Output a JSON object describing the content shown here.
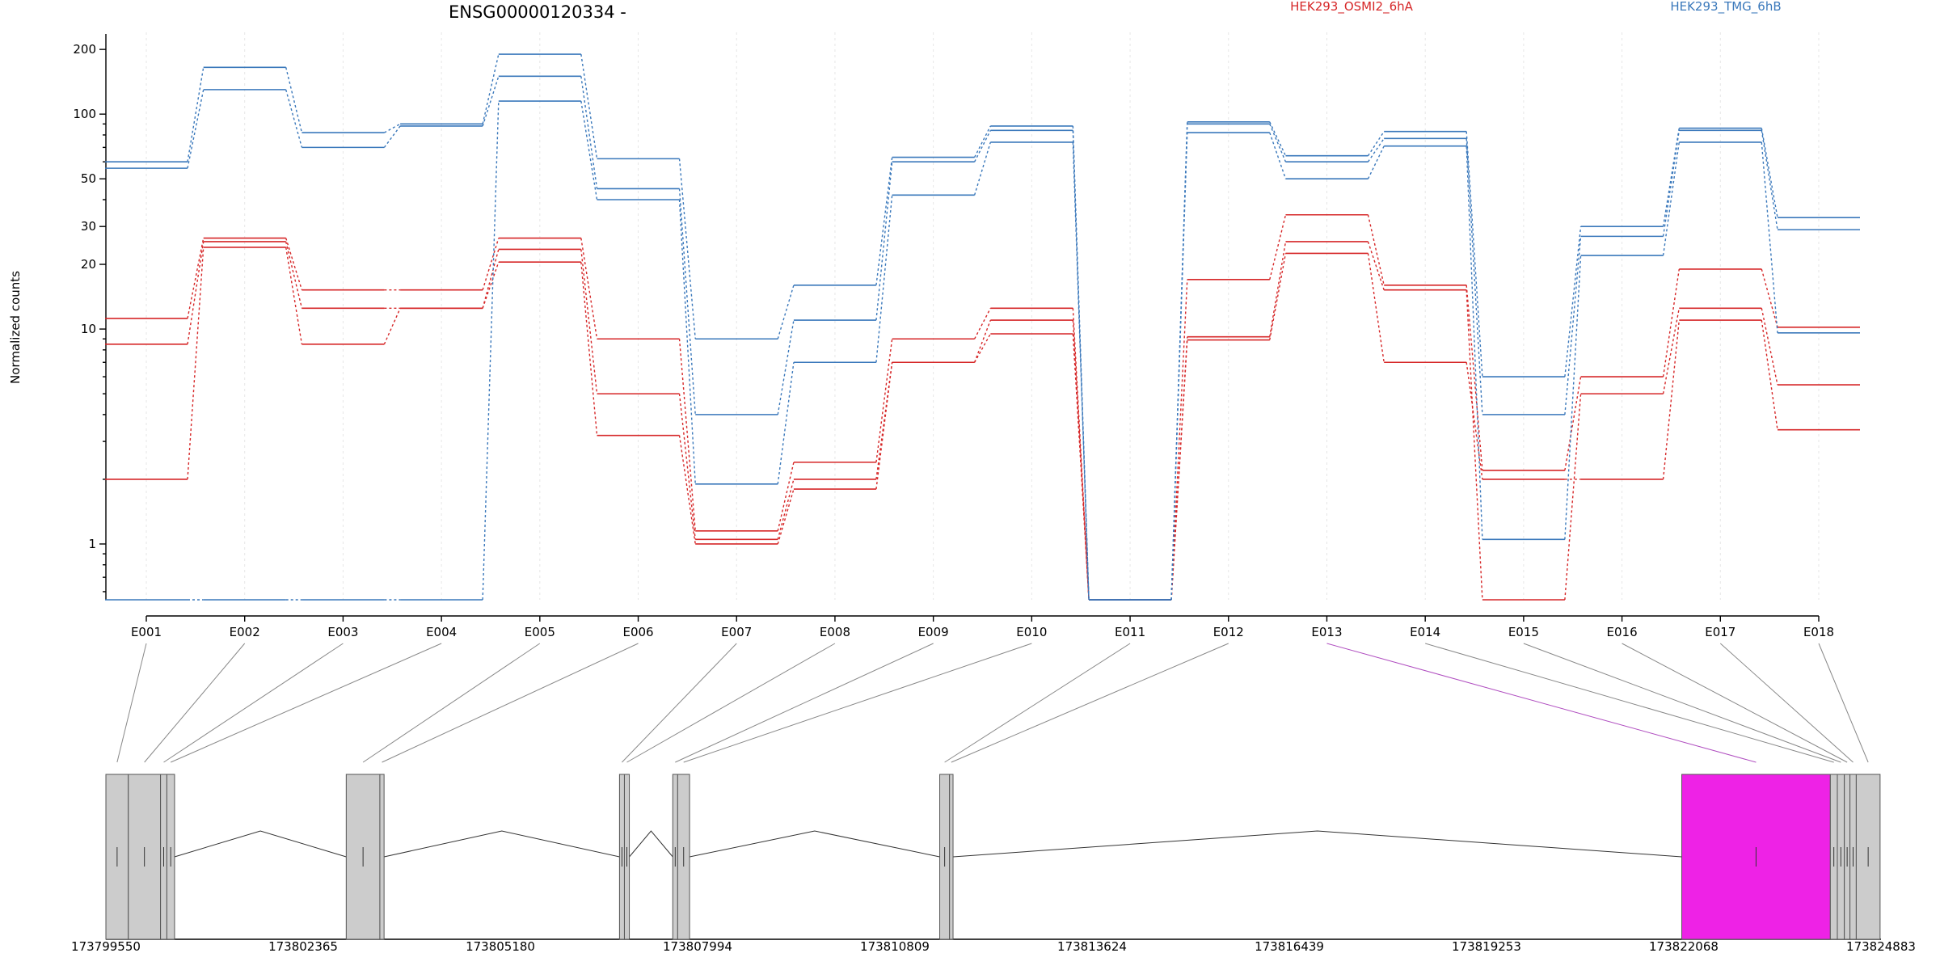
{
  "chart_data": {
    "type": "line",
    "title": "ENSG00000120334 -",
    "xlabel": "",
    "ylabel": "Normalized counts",
    "y_scale": "log",
    "ylim": [
      0.55,
      230
    ],
    "y_ticks": [
      1,
      10,
      20,
      30,
      50,
      100,
      200
    ],
    "grid": "vertical dotted lines at exon centers",
    "categories": [
      "E001",
      "E002",
      "E003",
      "E004",
      "E005",
      "E006",
      "E007",
      "E008",
      "E009",
      "E010",
      "E011",
      "E012",
      "E013",
      "E014",
      "E015",
      "E016",
      "E017",
      "E018"
    ],
    "zero_floor_value": 0.55,
    "series": [
      {
        "name": "HEK293_OSMI2_6hA",
        "color": "#d62728",
        "values": [
          11.2,
          26.5,
          15.2,
          15.2,
          26.5,
          9.0,
          1.15,
          2.4,
          9.0,
          12.5,
          0.55,
          17.0,
          34.0,
          16.0,
          2.2,
          6.0,
          19.0,
          10.2
        ]
      },
      {
        "name": "HEK293_OSMI2_6hA",
        "color": "#d62728",
        "values": [
          8.5,
          25.5,
          12.5,
          12.5,
          23.5,
          5.0,
          1.05,
          2.0,
          7.0,
          11.0,
          0.55,
          9.2,
          25.5,
          15.2,
          0.55,
          5.0,
          12.5,
          5.5
        ]
      },
      {
        "name": "HEK293_OSMI2_6hA",
        "color": "#d62728",
        "values": [
          2.0,
          24.0,
          8.5,
          12.5,
          20.5,
          3.2,
          1.0,
          1.8,
          7.0,
          9.5,
          0.55,
          8.9,
          22.5,
          7.0,
          2.0,
          2.0,
          11.0,
          3.4
        ]
      },
      {
        "name": "HEK293_TMG_6hB",
        "color": "#3a78bb",
        "values": [
          60,
          165,
          82,
          90,
          190,
          62,
          9.0,
          16.0,
          63,
          88,
          0.55,
          92,
          64,
          83,
          6.0,
          30,
          86,
          33
        ]
      },
      {
        "name": "HEK293_TMG_6hB",
        "color": "#3a78bb",
        "values": [
          56,
          130,
          70,
          88,
          150,
          45,
          4.0,
          11.0,
          60,
          84,
          0.55,
          90,
          60,
          77,
          4.0,
          27,
          84,
          29
        ]
      },
      {
        "name": "HEK293_TMG_6hB",
        "color": "#3a78bb",
        "values": [
          0.55,
          0.55,
          0.55,
          0.55,
          115,
          40,
          1.9,
          7.0,
          42,
          74,
          0.55,
          82,
          50,
          71,
          1.05,
          22,
          74,
          9.6
        ]
      }
    ],
    "legend": [
      {
        "name": "HEK293_OSMI2_6hA",
        "color": "#d62728"
      },
      {
        "name": "HEK293_TMG_6hB",
        "color": "#3a78bb"
      }
    ],
    "gene_model": {
      "coordinate_ticks": [
        173799550,
        173802365,
        173805180,
        173807994,
        173810809,
        173813624,
        173816439,
        173819253,
        173822068,
        173824883
      ],
      "highlight_exon": "E013",
      "highlight_color": "#ee22e6",
      "connector_color": "#888888",
      "highlight_connector_color": "#b04ec0",
      "exons": [
        {
          "id": "E001",
          "start": 173799550,
          "end": 173799870
        },
        {
          "id": "E002",
          "start": 173799870,
          "end": 173800330
        },
        {
          "id": "E003",
          "start": 173800330,
          "end": 173800420
        },
        {
          "id": "E004",
          "start": 173800420,
          "end": 173800530
        },
        {
          "id": "E005",
          "start": 173802980,
          "end": 173803460
        },
        {
          "id": "E006",
          "start": 173803460,
          "end": 173803520
        },
        {
          "id": "E007",
          "start": 173806880,
          "end": 173806950
        },
        {
          "id": "E008",
          "start": 173806950,
          "end": 173807020
        },
        {
          "id": "E009",
          "start": 173807640,
          "end": 173807710
        },
        {
          "id": "E010",
          "start": 173807710,
          "end": 173807880
        },
        {
          "id": "E011",
          "start": 173811450,
          "end": 173811590
        },
        {
          "id": "E012",
          "start": 173811590,
          "end": 173811640
        },
        {
          "id": "E013",
          "start": 173822040,
          "end": 173824160
        },
        {
          "id": "E014",
          "start": 173824160,
          "end": 173824260
        },
        {
          "id": "E015",
          "start": 173824260,
          "end": 173824360
        },
        {
          "id": "E016",
          "start": 173824360,
          "end": 173824440
        },
        {
          "id": "E017",
          "start": 173824440,
          "end": 173824530
        },
        {
          "id": "E018",
          "start": 173824530,
          "end": 173824870
        }
      ]
    }
  }
}
